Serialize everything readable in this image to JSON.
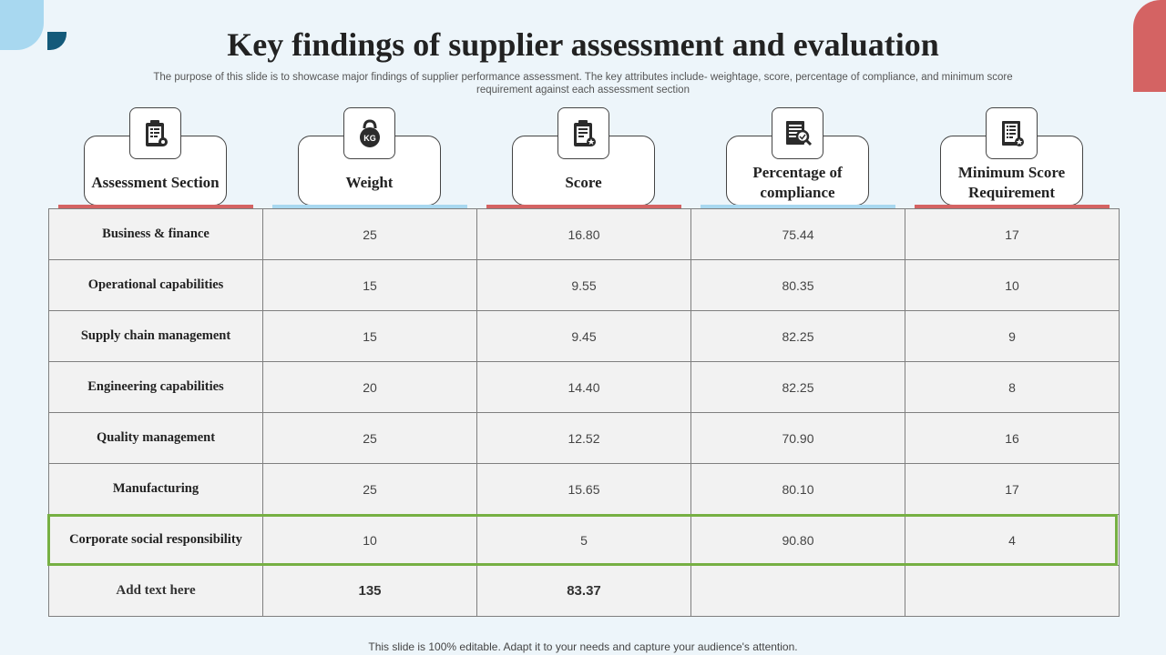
{
  "title": "Key findings of supplier assessment and evaluation",
  "subtitle": "The purpose of this slide is to showcase major findings of supplier performance assessment. The key attributes include- weightage, score, percentage of compliance, and minimum score requirement against each assessment section",
  "colors": {
    "accent_red": "#d46363",
    "accent_blue": "#a8d8f0",
    "highlight_green": "#76b043",
    "dark_teal": "#145a7a"
  },
  "headers": [
    {
      "label": "Assessment Section",
      "icon": "clipboard-gear-icon"
    },
    {
      "label": "Weight",
      "icon": "kettlebell-kg-icon"
    },
    {
      "label": "Score",
      "icon": "clipboard-star-icon"
    },
    {
      "label": "Percentage of compliance",
      "icon": "document-magnifier-icon"
    },
    {
      "label": "Minimum Score Requirement",
      "icon": "checklist-badge-icon"
    }
  ],
  "rows": [
    [
      "Business & finance",
      "25",
      "16.80",
      "75.44",
      "17"
    ],
    [
      "Operational  capabilities",
      "15",
      "9.55",
      "80.35",
      "10"
    ],
    [
      "Supply  chain  management",
      "15",
      "9.45",
      "82.25",
      "9"
    ],
    [
      "Engineering  capabilities",
      "20",
      "14.40",
      "82.25",
      "8"
    ],
    [
      "Quality  management",
      "25",
      "12.52",
      "70.90",
      "16"
    ],
    [
      "Manufacturing",
      "25",
      "15.65",
      "80.10",
      "17"
    ],
    [
      "Corporate  social responsibility",
      "10",
      "5",
      "90.80",
      "4"
    ],
    [
      "Add text here",
      "135",
      "83.37",
      "",
      ""
    ]
  ],
  "footer": "This slide is 100% editable. Adapt it to your needs and capture your audience's attention."
}
